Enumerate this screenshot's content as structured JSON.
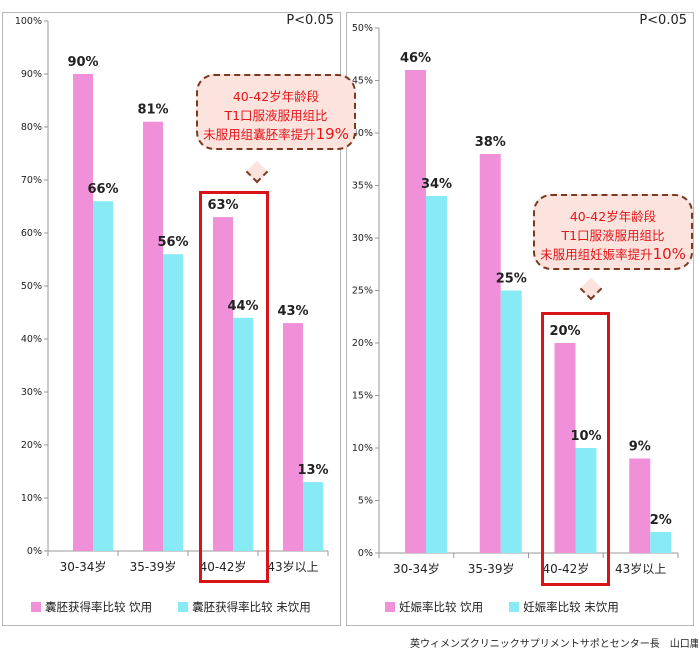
{
  "chart_data": [
    {
      "type": "bar",
      "categories": [
        "30-34岁",
        "35-39岁",
        "40-42岁",
        "43岁以上"
      ],
      "series": [
        {
          "name": "囊胚获得率比较 饮用",
          "values": [
            90,
            81,
            63,
            43
          ],
          "color": "#f090d8"
        },
        {
          "name": "囊胚获得率比较 未饮用",
          "values": [
            66,
            56,
            44,
            13
          ],
          "color": "#88eaf5"
        }
      ],
      "data_labels": [
        [
          "90%",
          "81%",
          "63%",
          "43%"
        ],
        [
          "66%",
          "56%",
          "44%",
          "13%"
        ]
      ],
      "yticks": [
        "0%",
        "10%",
        "20%",
        "30%",
        "40%",
        "50%",
        "60%",
        "70%",
        "80%",
        "90%",
        "100%"
      ],
      "ylim": [
        0,
        100
      ],
      "annotation": "P<0.05",
      "callout": [
        "40-42岁年龄段",
        "T1口服液服用组比",
        "未服用组囊胚率提升",
        "19%"
      ],
      "legend_position": "bottom"
    },
    {
      "type": "bar",
      "categories": [
        "30-34岁",
        "35-39岁",
        "40-42岁",
        "43岁以上"
      ],
      "series": [
        {
          "name": "妊娠率比较 饮用",
          "values": [
            46,
            38,
            20,
            9
          ],
          "color": "#f090d8"
        },
        {
          "name": "妊娠率比较 未饮用",
          "values": [
            34,
            25,
            10,
            2
          ],
          "color": "#88eaf5"
        }
      ],
      "data_labels": [
        [
          "46%",
          "38%",
          "20%",
          "9%"
        ],
        [
          "34%",
          "25%",
          "10%",
          "2%"
        ]
      ],
      "yticks": [
        "0%",
        "5%",
        "10%",
        "15%",
        "20%",
        "25%",
        "30%",
        "35%",
        "40%",
        "45%",
        "50%"
      ],
      "ylim": [
        0,
        50
      ],
      "annotation": "P<0.05",
      "callout": [
        "40-42岁年龄段",
        "T1口服液服用组比",
        "未服用组妊娠率提升",
        "10%"
      ],
      "legend_position": "bottom"
    }
  ],
  "credit": "英ウィメンズクリニックサプリメントサポとセンター長　山口庸仁"
}
